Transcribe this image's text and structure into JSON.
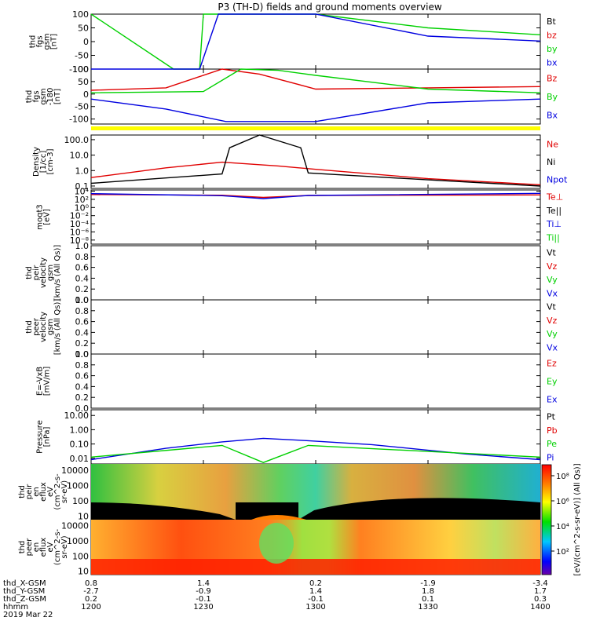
{
  "title": "P3 (TH-D) fields and ground moments overview",
  "colors": {
    "black": "#000000",
    "red": "#e00000",
    "green": "#00d000",
    "blue": "#0000e0",
    "yellow": "#ffff00"
  },
  "panels": [
    {
      "id": "p1",
      "ylabel": [
        "thd",
        "fgs",
        "gsm",
        "[nT]"
      ],
      "ticks": [
        {
          "v": 100,
          "label": "100"
        },
        {
          "v": 50,
          "label": "50"
        },
        {
          "v": 0,
          "label": "0"
        },
        {
          "v": -50,
          "label": "-50"
        },
        {
          "v": -100,
          "label": "-100"
        }
      ],
      "legend": [
        {
          "text": "Bt",
          "color": "#000000"
        },
        {
          "text": "bz",
          "color": "#e00000"
        },
        {
          "text": "by",
          "color": "#00d000"
        },
        {
          "text": "bx",
          "color": "#0000e0"
        }
      ]
    },
    {
      "id": "p2",
      "ylabel": [
        "thd",
        "fgs",
        "gsm",
        "-180",
        "[nT]"
      ],
      "ticks": [
        {
          "v": 100,
          "label": "100"
        },
        {
          "v": 50,
          "label": "50"
        },
        {
          "v": 0,
          "label": "0"
        },
        {
          "v": -50,
          "label": "-50"
        },
        {
          "v": -100,
          "label": "-100"
        }
      ],
      "legend": [
        {
          "text": "Bz",
          "color": "#e00000"
        },
        {
          "text": "By",
          "color": "#00d000"
        },
        {
          "text": "Bx",
          "color": "#0000e0"
        }
      ]
    },
    {
      "id": "p3",
      "ylabel": [
        "Density",
        "[1/cc]",
        "[cm-3]"
      ],
      "ticks": [
        {
          "v": 100,
          "label": "100.0"
        },
        {
          "v": 10,
          "label": "10.0"
        },
        {
          "v": 1,
          "label": "1.0"
        },
        {
          "v": 0.1,
          "label": "0.1"
        }
      ],
      "legend": [
        {
          "text": "Ne",
          "color": "#e00000"
        },
        {
          "text": "Ni",
          "color": "#000000"
        },
        {
          "text": "Npot",
          "color": "#0000e0"
        }
      ]
    },
    {
      "id": "p4",
      "ylabel": [
        "moqt3",
        "[eV]"
      ],
      "ticks": [
        {
          "v": 10000,
          "label": "10⁴"
        },
        {
          "v": 100,
          "label": "10²"
        },
        {
          "v": 1,
          "label": "10⁰"
        },
        {
          "v": 0.01,
          "label": "10⁻²"
        },
        {
          "v": 0.0001,
          "label": "10⁻⁴"
        },
        {
          "v": 1e-06,
          "label": "10⁻⁶"
        },
        {
          "v": 1e-08,
          "label": "10⁻⁸"
        }
      ],
      "legend": [
        {
          "text": "Te⊥",
          "color": "#e00000"
        },
        {
          "text": "Te||",
          "color": "#000000"
        },
        {
          "text": "Ti⊥",
          "color": "#0000e0"
        },
        {
          "text": "Ti||",
          "color": "#00d000"
        }
      ]
    },
    {
      "id": "p5",
      "ylabel": [
        "thd",
        "peir",
        "velocity",
        "gsm",
        "[km/s (All Qs)]"
      ],
      "ticks": [
        {
          "v": 1.0,
          "label": "1.0"
        },
        {
          "v": 0.8,
          "label": "0.8"
        },
        {
          "v": 0.6,
          "label": "0.6"
        },
        {
          "v": 0.4,
          "label": "0.4"
        },
        {
          "v": 0.2,
          "label": "0.2"
        },
        {
          "v": 0.0,
          "label": "0.0"
        }
      ],
      "legend": [
        {
          "text": "Vt",
          "color": "#000000"
        },
        {
          "text": "Vz",
          "color": "#e00000"
        },
        {
          "text": "Vy",
          "color": "#00d000"
        },
        {
          "text": "Vx",
          "color": "#0000e0"
        }
      ]
    },
    {
      "id": "p6",
      "ylabel": [
        "thd",
        "peer",
        "velocity",
        "gsm",
        "[km/s (All Qs)]"
      ],
      "ticks": [
        {
          "v": 1.0,
          "label": "1.0"
        },
        {
          "v": 0.8,
          "label": "0.8"
        },
        {
          "v": 0.6,
          "label": "0.6"
        },
        {
          "v": 0.4,
          "label": "0.4"
        },
        {
          "v": 0.2,
          "label": "0.2"
        },
        {
          "v": 0.0,
          "label": "0.0"
        }
      ],
      "legend": [
        {
          "text": "Vt",
          "color": "#000000"
        },
        {
          "text": "Vz",
          "color": "#e00000"
        },
        {
          "text": "Vy",
          "color": "#00d000"
        },
        {
          "text": "Vx",
          "color": "#0000e0"
        }
      ]
    },
    {
      "id": "p7",
      "ylabel": [
        "E=-VxB",
        "[mV/m]"
      ],
      "ticks": [
        {
          "v": 1.0,
          "label": "1.0"
        },
        {
          "v": 0.8,
          "label": "0.8"
        },
        {
          "v": 0.6,
          "label": "0.6"
        },
        {
          "v": 0.4,
          "label": "0.4"
        },
        {
          "v": 0.2,
          "label": "0.2"
        },
        {
          "v": 0.0,
          "label": "0.0"
        }
      ],
      "legend": [
        {
          "text": "Ez",
          "color": "#e00000"
        },
        {
          "text": "Ey",
          "color": "#00d000"
        },
        {
          "text": "Ex",
          "color": "#0000e0"
        }
      ]
    },
    {
      "id": "p8",
      "ylabel": [
        "Pressure",
        "[nPa]"
      ],
      "ticks": [
        {
          "v": 10,
          "label": "10.00"
        },
        {
          "v": 1,
          "label": "1.00"
        },
        {
          "v": 0.1,
          "label": "0.10"
        },
        {
          "v": 0.01,
          "label": "0.01"
        }
      ],
      "legend": [
        {
          "text": "Pt",
          "color": "#000000"
        },
        {
          "text": "Pb",
          "color": "#e00000"
        },
        {
          "text": "Pe",
          "color": "#00d000"
        },
        {
          "text": "Pi",
          "color": "#0000e0"
        }
      ]
    },
    {
      "id": "p9",
      "ylabel": [
        "thd",
        "peir",
        "en",
        "eflux",
        "eV",
        "(cm^2-s-",
        "sr-eV)"
      ],
      "ticks": [
        {
          "v": 10000,
          "label": "10000"
        },
        {
          "v": 1000,
          "label": "1000"
        },
        {
          "v": 100,
          "label": "100"
        },
        {
          "v": 10,
          "label": "10"
        }
      ]
    },
    {
      "id": "p10",
      "ylabel": [
        "thd",
        "peer",
        "en",
        "eflux",
        "eV",
        "(cm^2-s-",
        "sr-eV)"
      ],
      "ticks": [
        {
          "v": 10000,
          "label": "10000"
        },
        {
          "v": 1000,
          "label": "1000"
        },
        {
          "v": 100,
          "label": "100"
        },
        {
          "v": 10,
          "label": "10"
        }
      ]
    }
  ],
  "colorbar": {
    "ticks": [
      "10⁸",
      "10⁶",
      "10⁴",
      "10²"
    ],
    "label": "[eV/(cm^2-s-sr-eV)] (All Qs)]"
  },
  "xaxis": {
    "rows": [
      {
        "name": "thd_X-GSM",
        "values": [
          "0.8",
          "1.4",
          "0.2",
          "-1.9",
          "-3.4"
        ]
      },
      {
        "name": "thd_Y-GSM",
        "values": [
          "-2.7",
          "-0.9",
          "1.4",
          "1.8",
          "1.7"
        ]
      },
      {
        "name": "thd_Z-GSM",
        "values": [
          "0.2",
          "-0.1",
          "-0.1",
          "0.1",
          "0.3"
        ]
      },
      {
        "name": "hhmm",
        "values": [
          "1200",
          "1230",
          "1300",
          "1330",
          "1400"
        ]
      }
    ],
    "date": "2019 Mar 22"
  },
  "chart_data": {
    "type": "line",
    "time_axis": {
      "unit": "hhmm",
      "range": [
        "1200",
        "1400"
      ],
      "ticks": [
        "1200",
        "1230",
        "1300",
        "1330",
        "1400"
      ]
    },
    "panels": [
      {
        "name": "thd fgs gsm",
        "ylim": [
          -100,
          100
        ],
        "series": [
          {
            "name": "by",
            "t": [
              "1200",
              "1222",
              "1229",
              "1230",
              "1300",
              "1330",
              "1400"
            ],
            "values": [
              100,
              -100,
              -100,
              100,
              100,
              50,
              25
            ]
          },
          {
            "name": "bx",
            "t": [
              "1200",
              "1229",
              "1234",
              "1300",
              "1330",
              "1400"
            ],
            "values": [
              -100,
              -100,
              100,
              100,
              20,
              2
            ]
          }
        ]
      },
      {
        "name": "thd fgs gsm -180",
        "ylim": [
          -120,
          100
        ],
        "series": [
          {
            "name": "Bz",
            "t": [
              "1200",
              "1220",
              "1235",
              "1245",
              "1300",
              "1330",
              "1400"
            ],
            "values": [
              15,
              25,
              100,
              80,
              20,
              25,
              30
            ]
          },
          {
            "name": "By",
            "t": [
              "1200",
              "1230",
              "1240",
              "1250",
              "1300",
              "1330",
              "1400"
            ],
            "values": [
              5,
              10,
              100,
              95,
              75,
              20,
              5
            ]
          },
          {
            "name": "Bx",
            "t": [
              "1200",
              "1220",
              "1236",
              "1300",
              "1330",
              "1400"
            ],
            "values": [
              -20,
              -60,
              -110,
              -110,
              -35,
              -20
            ]
          }
        ]
      },
      {
        "name": "Density",
        "ylim": [
          0.1,
          100
        ],
        "log": true,
        "series": [
          {
            "name": "Ne",
            "t": [
              "1200",
              "1220",
              "1235",
              "1250",
              "1300",
              "1330",
              "1400"
            ],
            "values": [
              0.35,
              1.5,
              3.5,
              2.0,
              1.2,
              0.3,
              0.12
            ]
          },
          {
            "name": "Ni",
            "t": [
              "1200",
              "1235",
              "1237",
              "1245",
              "1256",
              "1258",
              "1330",
              "1400"
            ],
            "values": [
              0.15,
              0.6,
              30,
              200,
              30,
              0.7,
              0.25,
              0.1
            ]
          }
        ]
      },
      {
        "name": "moqt3",
        "ylim": [
          1e-09,
          10000.0
        ],
        "log": true,
        "series": [
          {
            "name": "Te⊥",
            "t": [
              "1200",
              "1235",
              "1246",
              "1258",
              "1400"
            ],
            "values": [
              1500,
              1000,
              300,
              900,
              1200
            ]
          },
          {
            "name": "Ti⊥",
            "t": [
              "1200",
              "1235",
              "1246",
              "1258",
              "1400"
            ],
            "values": [
              2500,
              800,
              150,
              900,
              3000
            ]
          }
        ]
      },
      {
        "name": "Pressure",
        "ylim": [
          0.004,
          20
        ],
        "log": true,
        "series": [
          {
            "name": "Pi",
            "t": [
              "1200",
              "1220",
              "1235",
              "1246",
              "1258",
              "1315",
              "1340",
              "1400"
            ],
            "values": [
              0.008,
              0.05,
              0.14,
              0.25,
              0.17,
              0.09,
              0.02,
              0.008
            ]
          },
          {
            "name": "Pe",
            "t": [
              "1200",
              "1235",
              "1246",
              "1258",
              "1330",
              "1400"
            ],
            "values": [
              0.012,
              0.08,
              0.005,
              0.08,
              0.03,
              0.012
            ]
          }
        ]
      }
    ]
  }
}
